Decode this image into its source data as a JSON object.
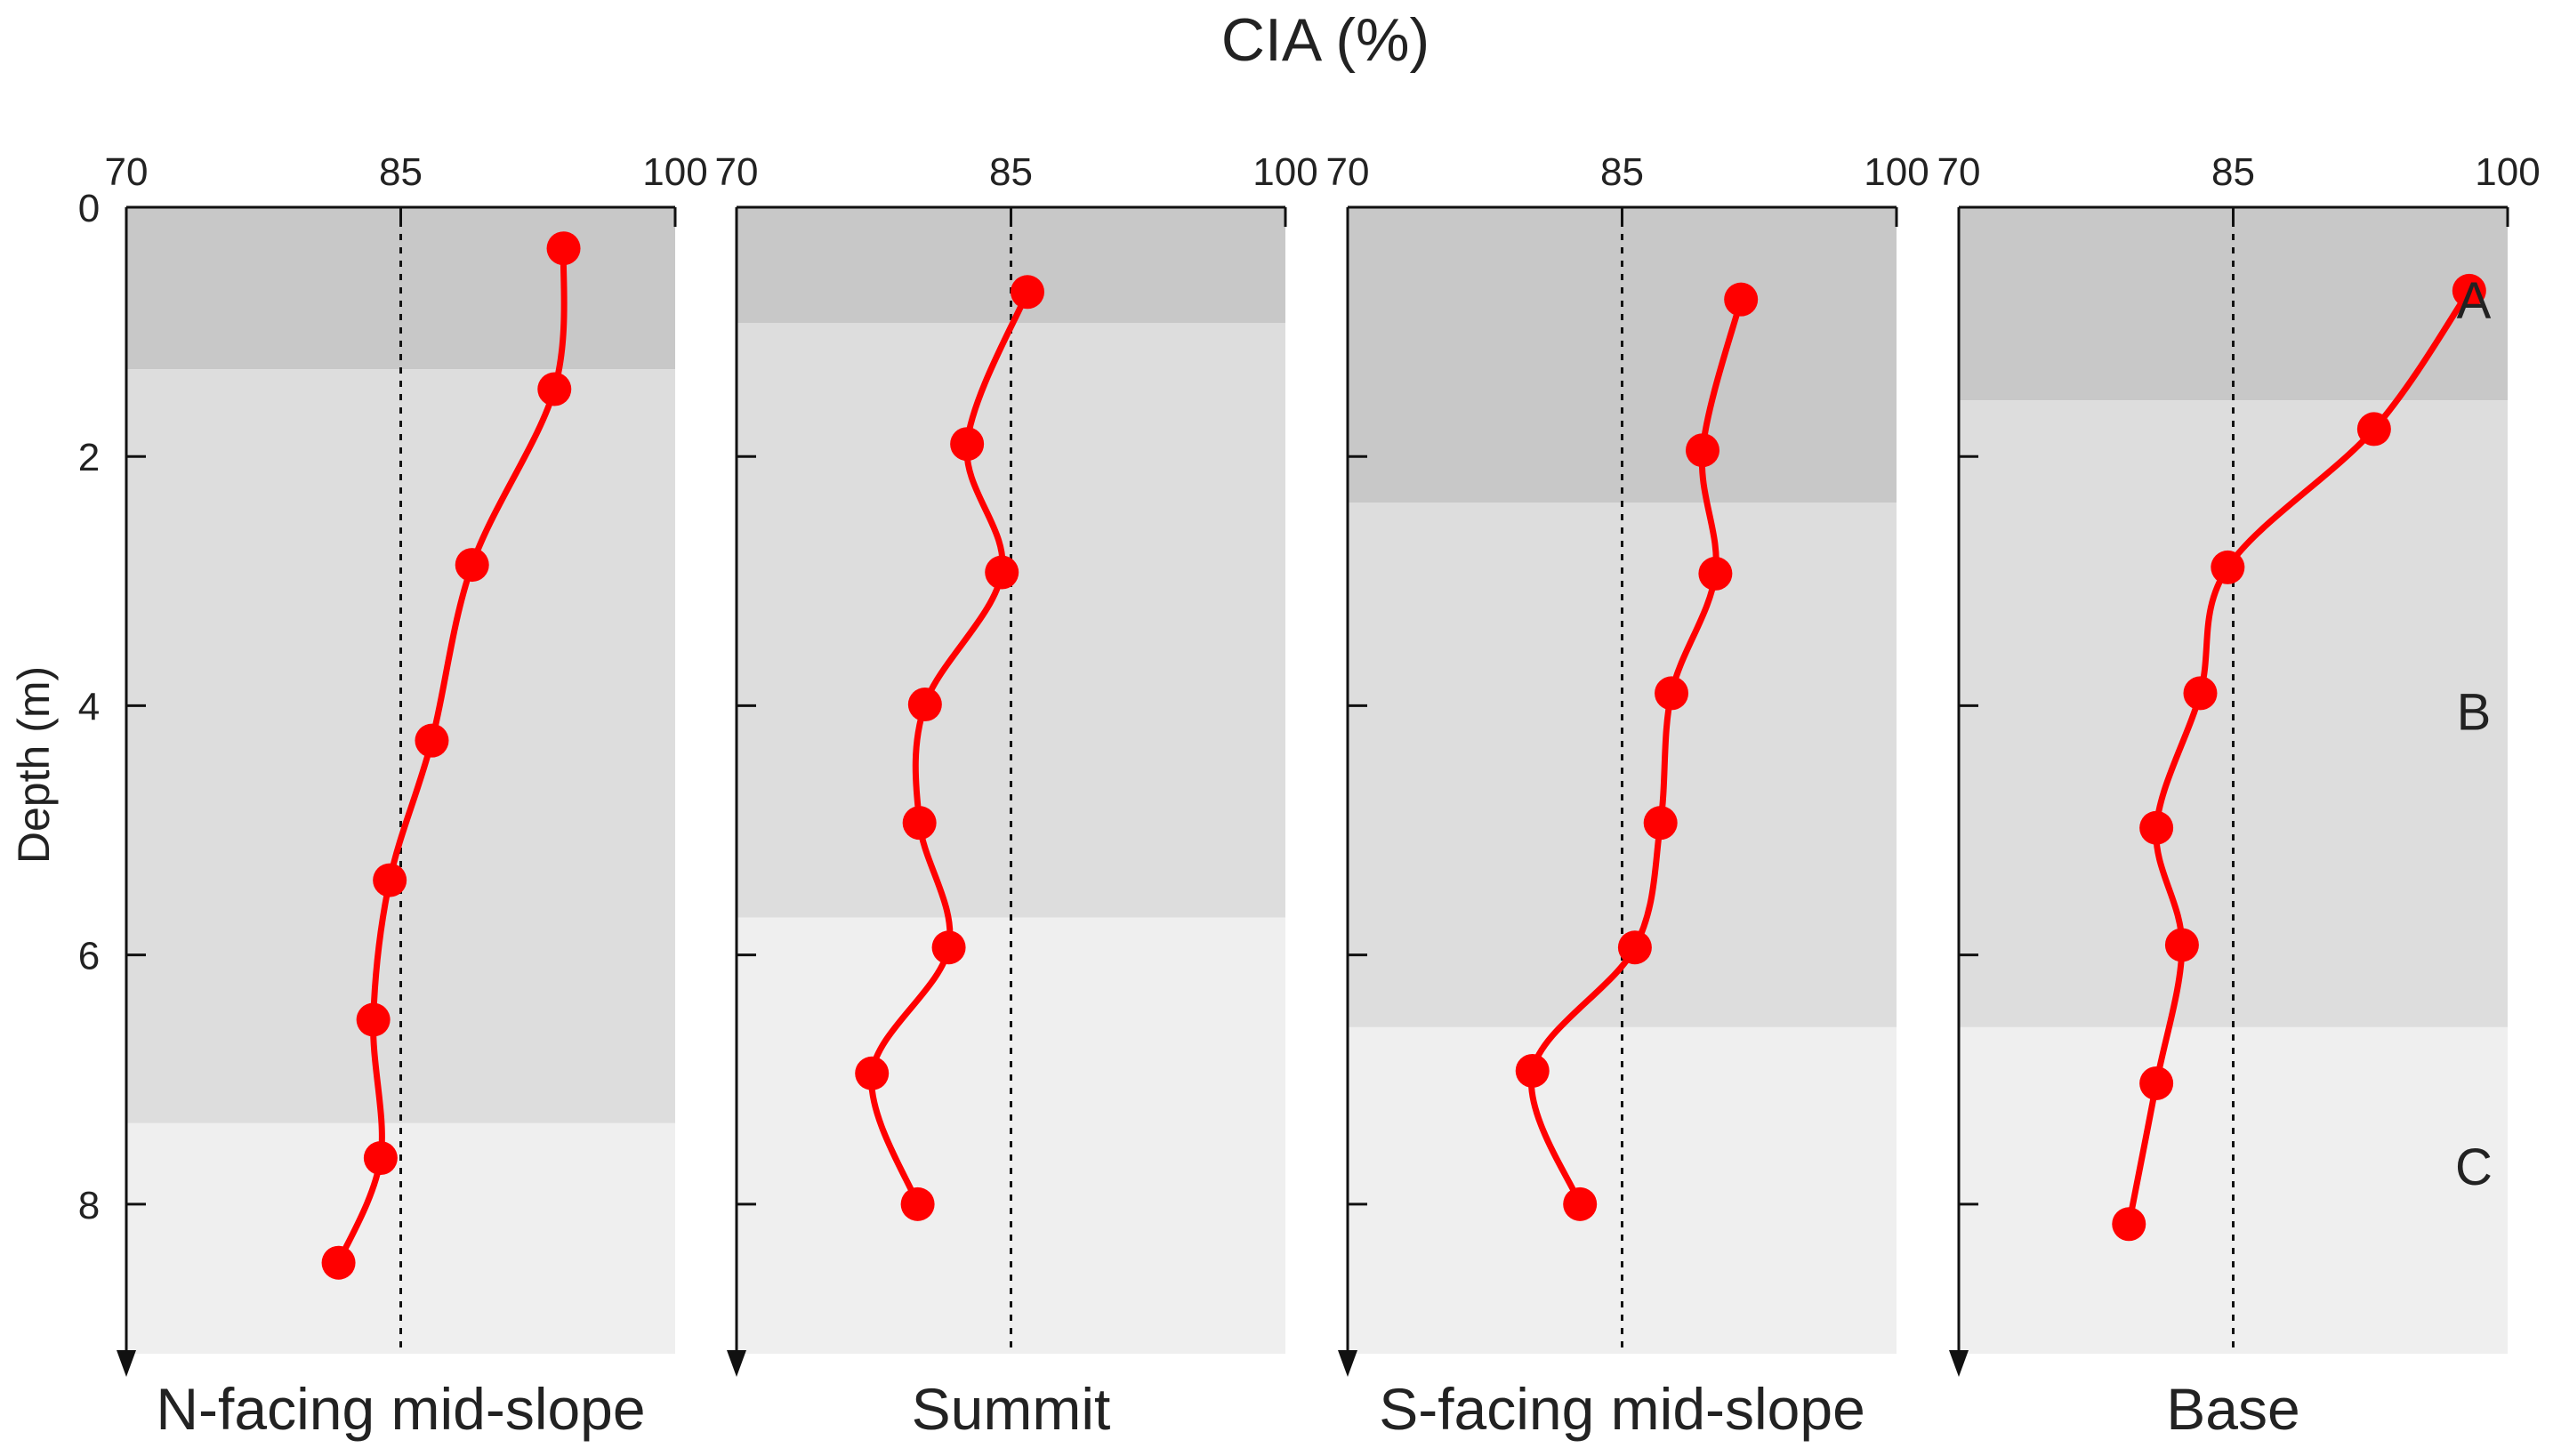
{
  "chart_data": {
    "type": "line",
    "title": "CIA (%)",
    "ylabel": "Depth (m)",
    "xlim": [
      70,
      100
    ],
    "ylim": [
      0,
      9.2
    ],
    "x_ticks": [
      "70",
      "85",
      "100"
    ],
    "y_ticks": [
      "0",
      "2",
      "4",
      "6",
      "8"
    ],
    "reference_line": 85,
    "horizon_labels": [
      "A",
      "B",
      "C"
    ],
    "panels": [
      {
        "name": "N-facing  mid-slope",
        "horizons": [
          {
            "label": "A",
            "top": 0,
            "bottom": 1.3
          },
          {
            "label": "B",
            "top": 1.3,
            "bottom": 7.35
          },
          {
            "label": "C",
            "top": 7.35,
            "bottom": 9.2
          }
        ],
        "cia": [
          93.9,
          93.4,
          88.9,
          86.7,
          84.4,
          83.5,
          83.9,
          81.6
        ],
        "depth": [
          0.33,
          1.46,
          2.87,
          4.28,
          5.4,
          6.52,
          7.63,
          8.47
        ]
      },
      {
        "name": "Summit",
        "horizons": [
          {
            "label": "A",
            "top": 0,
            "bottom": 0.93
          },
          {
            "label": "B",
            "top": 0.93,
            "bottom": 5.7
          },
          {
            "label": "C",
            "top": 5.7,
            "bottom": 9.2
          }
        ],
        "cia": [
          85.9,
          82.6,
          84.5,
          80.3,
          80.0,
          81.6,
          77.4,
          79.9
        ],
        "depth": [
          0.68,
          1.9,
          2.93,
          3.99,
          4.94,
          5.94,
          6.95,
          8.0
        ]
      },
      {
        "name": "S-facing  mid-slope",
        "horizons": [
          {
            "label": "A",
            "top": 0,
            "bottom": 2.37
          },
          {
            "label": "B",
            "top": 2.37,
            "bottom": 6.58
          },
          {
            "label": "C",
            "top": 6.58,
            "bottom": 9.2
          }
        ],
        "cia": [
          91.5,
          89.4,
          90.1,
          87.7,
          87.1,
          85.7,
          80.1,
          82.7
        ],
        "depth": [
          0.74,
          1.95,
          2.94,
          3.9,
          4.94,
          5.94,
          6.93,
          8.0
        ]
      },
      {
        "name": "Base",
        "horizons": [
          {
            "label": "A",
            "top": 0,
            "bottom": 1.55
          },
          {
            "label": "B",
            "top": 1.55,
            "bottom": 6.58
          },
          {
            "label": "C",
            "top": 6.58,
            "bottom": 9.2
          }
        ],
        "cia": [
          97.9,
          92.7,
          84.7,
          83.2,
          80.8,
          82.2,
          80.8,
          79.3
        ],
        "depth": [
          0.67,
          1.78,
          2.89,
          3.9,
          4.98,
          5.92,
          7.03,
          8.16
        ]
      }
    ]
  }
}
